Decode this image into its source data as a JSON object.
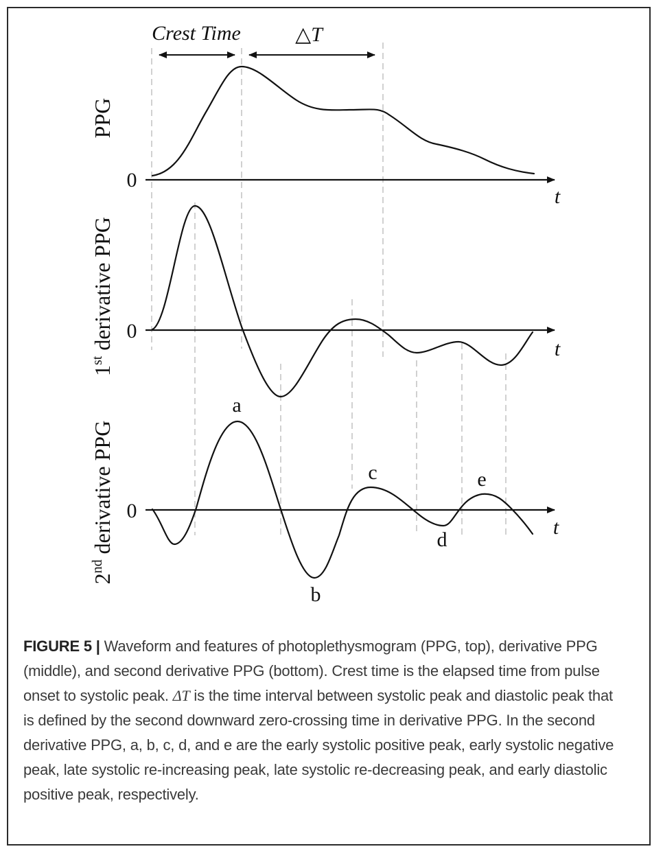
{
  "figure": {
    "top_labels": {
      "crest_time": "Crest Time",
      "delta_t": "△T"
    },
    "panels": [
      {
        "ylabel": "PPG",
        "zero": "0",
        "xlabel": "t"
      },
      {
        "ylabel_main": "1",
        "ylabel_sup": "st",
        "ylabel_rest": " derivative PPG",
        "zero": "0",
        "xlabel": "t"
      },
      {
        "ylabel_main": "2",
        "ylabel_sup": "nd",
        "ylabel_rest": " derivative PPG",
        "zero": "0",
        "xlabel": "t"
      }
    ],
    "peak_labels": {
      "a": "a",
      "b": "b",
      "c": "c",
      "d": "d",
      "e": "e"
    }
  },
  "caption": {
    "label": "FIGURE 5 |",
    "text_1": " Waveform and features of photoplethysmogram (PPG, top), derivative PPG (middle), and second derivative PPG (bottom). Crest time is the elapsed time from pulse onset to systolic peak. ",
    "delta_symbol": "ΔT",
    "text_2": " is the time interval between systolic peak and diastolic peak that is defined by the second downward zero-crossing time in derivative PPG. In the second derivative PPG, a, b, c, d, and e are the early systolic positive peak, early systolic negative peak, late systolic re-increasing peak, late systolic re-decreasing peak, and early diastolic positive peak, respectively."
  }
}
